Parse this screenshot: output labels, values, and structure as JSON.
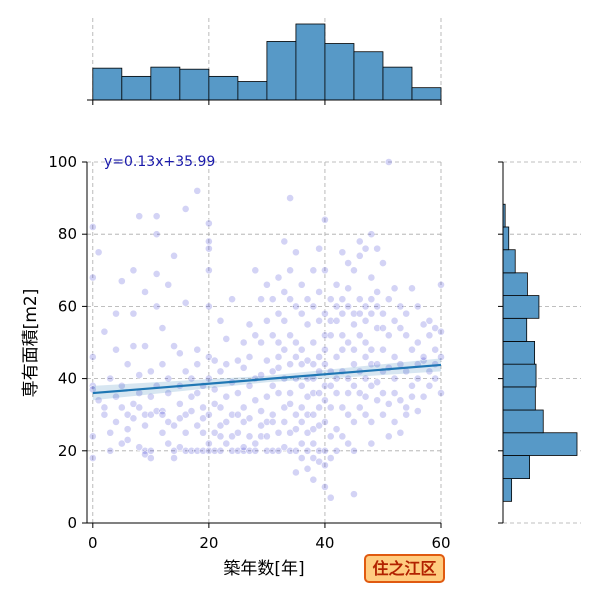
{
  "chart_data": {
    "type": "scatter",
    "xlabel": "築年数[年]",
    "ylabel": "専有面積[m2]",
    "xlim": [
      -1,
      60
    ],
    "ylim": [
      0,
      100
    ],
    "xticks": [
      0,
      20,
      40,
      60
    ],
    "yticks": [
      0,
      20,
      40,
      60,
      80,
      100
    ],
    "grid": true,
    "regression": {
      "label": "y=0.13x+35.99",
      "slope": 0.13,
      "intercept": 35.99
    },
    "badge": "住之江区",
    "colors": {
      "point": "#2222cc",
      "line": "#1f77b4",
      "hist": "#5799c7",
      "label": "#1a1aaa",
      "badge_bg": "#ffcc80",
      "badge_border": "#e05a10",
      "badge_text": "#b22200"
    },
    "marginal_x_hist": {
      "bin_edges": [
        0,
        5,
        10,
        15,
        20,
        25,
        30,
        35,
        40,
        45,
        50,
        55,
        60
      ],
      "counts": [
        31,
        23,
        32,
        30,
        23,
        18,
        57,
        74,
        55,
        47,
        32,
        12
      ]
    },
    "marginal_y_hist": {
      "bin_edges": [
        6,
        12.3,
        18.7,
        25,
        31.3,
        37.7,
        44,
        50.3,
        56.7,
        63,
        69.3,
        75.7,
        82,
        88.3
      ],
      "counts": [
        12,
        37,
        103,
        56,
        45,
        46,
        44,
        33,
        50,
        34,
        17,
        8,
        3
      ]
    },
    "points": [
      [
        0,
        38
      ],
      [
        0,
        37
      ],
      [
        0,
        24
      ],
      [
        0,
        46
      ],
      [
        0,
        68
      ],
      [
        0,
        82
      ],
      [
        0,
        18
      ],
      [
        1,
        75
      ],
      [
        1,
        34
      ],
      [
        2,
        32
      ],
      [
        2,
        53
      ],
      [
        2,
        30
      ],
      [
        3,
        20
      ],
      [
        3,
        25
      ],
      [
        3,
        40
      ],
      [
        4,
        28
      ],
      [
        4,
        35
      ],
      [
        4,
        48
      ],
      [
        4,
        58
      ],
      [
        5,
        67
      ],
      [
        5,
        22
      ],
      [
        5,
        32
      ],
      [
        5,
        38
      ],
      [
        6,
        26
      ],
      [
        6,
        30
      ],
      [
        6,
        44
      ],
      [
        6,
        23
      ],
      [
        7,
        29
      ],
      [
        7,
        49
      ],
      [
        7,
        33
      ],
      [
        7,
        70
      ],
      [
        7,
        58
      ],
      [
        8,
        41
      ],
      [
        8,
        32
      ],
      [
        8,
        21
      ],
      [
        8,
        85
      ],
      [
        8,
        36
      ],
      [
        9,
        20
      ],
      [
        9,
        19
      ],
      [
        9,
        64
      ],
      [
        9,
        49
      ],
      [
        9,
        27
      ],
      [
        9,
        30
      ],
      [
        10,
        20
      ],
      [
        10,
        42
      ],
      [
        10,
        30
      ],
      [
        10,
        35
      ],
      [
        10,
        18
      ],
      [
        11,
        80
      ],
      [
        11,
        69
      ],
      [
        11,
        31
      ],
      [
        11,
        85
      ],
      [
        11,
        60
      ],
      [
        11,
        38
      ],
      [
        12,
        25
      ],
      [
        12,
        31
      ],
      [
        12,
        54
      ],
      [
        12,
        30
      ],
      [
        12,
        44
      ],
      [
        13,
        66
      ],
      [
        13,
        28
      ],
      [
        13,
        22
      ],
      [
        13,
        36
      ],
      [
        13,
        40
      ],
      [
        14,
        27
      ],
      [
        14,
        20
      ],
      [
        14,
        18
      ],
      [
        14,
        49
      ],
      [
        14,
        74
      ],
      [
        15,
        47
      ],
      [
        15,
        33
      ],
      [
        15,
        29
      ],
      [
        15,
        21
      ],
      [
        15,
        38
      ],
      [
        16,
        87
      ],
      [
        16,
        42
      ],
      [
        16,
        30
      ],
      [
        16,
        20
      ],
      [
        16,
        61
      ],
      [
        16,
        25
      ],
      [
        17,
        35
      ],
      [
        17,
        20
      ],
      [
        17,
        40
      ],
      [
        17,
        31
      ],
      [
        18,
        48
      ],
      [
        18,
        92
      ],
      [
        18,
        27
      ],
      [
        18,
        20
      ],
      [
        18,
        44
      ],
      [
        18,
        36
      ],
      [
        19,
        20
      ],
      [
        19,
        29
      ],
      [
        19,
        38
      ],
      [
        19,
        25
      ],
      [
        19,
        32
      ],
      [
        20,
        83
      ],
      [
        20,
        76
      ],
      [
        20,
        78
      ],
      [
        20,
        70
      ],
      [
        20,
        60
      ],
      [
        20,
        46
      ],
      [
        20,
        30
      ],
      [
        20,
        20
      ],
      [
        20,
        22
      ],
      [
        20,
        40
      ],
      [
        21,
        45
      ],
      [
        21,
        25
      ],
      [
        21,
        20
      ],
      [
        21,
        33
      ],
      [
        21,
        37
      ],
      [
        22,
        56
      ],
      [
        22,
        42
      ],
      [
        22,
        32
      ],
      [
        22,
        27
      ],
      [
        22,
        20
      ],
      [
        22,
        24
      ],
      [
        23,
        22
      ],
      [
        23,
        44
      ],
      [
        23,
        35
      ],
      [
        23,
        28
      ],
      [
        23,
        51
      ],
      [
        24,
        20
      ],
      [
        24,
        30
      ],
      [
        24,
        39
      ],
      [
        24,
        24
      ],
      [
        24,
        62
      ],
      [
        25,
        20
      ],
      [
        25,
        30
      ],
      [
        25,
        45
      ],
      [
        25,
        25
      ],
      [
        25,
        36
      ],
      [
        26,
        43
      ],
      [
        26,
        20
      ],
      [
        26,
        32
      ],
      [
        26,
        21
      ],
      [
        26,
        28
      ],
      [
        26,
        50
      ],
      [
        27,
        24
      ],
      [
        27,
        20
      ],
      [
        27,
        38
      ],
      [
        27,
        29
      ],
      [
        27,
        46
      ],
      [
        27,
        55
      ],
      [
        28,
        52
      ],
      [
        28,
        34
      ],
      [
        28,
        22
      ],
      [
        28,
        20
      ],
      [
        28,
        70
      ],
      [
        28,
        40
      ],
      [
        29,
        27
      ],
      [
        29,
        41
      ],
      [
        29,
        62
      ],
      [
        29,
        24
      ],
      [
        29,
        31
      ],
      [
        29,
        50
      ],
      [
        30,
        45
      ],
      [
        30,
        35
      ],
      [
        30,
        28
      ],
      [
        30,
        20
      ],
      [
        30,
        56
      ],
      [
        30,
        66
      ],
      [
        30,
        24
      ],
      [
        31,
        42
      ],
      [
        31,
        62
      ],
      [
        31,
        52
      ],
      [
        31,
        28
      ],
      [
        31,
        20
      ],
      [
        31,
        30
      ],
      [
        31,
        38
      ],
      [
        32,
        58
      ],
      [
        32,
        43
      ],
      [
        32,
        50
      ],
      [
        32,
        25
      ],
      [
        32,
        68
      ],
      [
        32,
        36
      ],
      [
        32,
        20
      ],
      [
        32,
        46
      ],
      [
        33,
        78
      ],
      [
        33,
        64
      ],
      [
        33,
        56
      ],
      [
        33,
        40
      ],
      [
        33,
        32
      ],
      [
        33,
        21
      ],
      [
        33,
        48
      ],
      [
        33,
        28
      ],
      [
        34,
        90
      ],
      [
        34,
        62
      ],
      [
        34,
        52
      ],
      [
        34,
        44
      ],
      [
        34,
        36
      ],
      [
        34,
        25
      ],
      [
        34,
        20
      ],
      [
        34,
        33
      ],
      [
        34,
        70
      ],
      [
        35,
        50
      ],
      [
        35,
        60
      ],
      [
        35,
        40
      ],
      [
        35,
        30
      ],
      [
        35,
        20
      ],
      [
        35,
        26
      ],
      [
        35,
        46
      ],
      [
        35,
        14
      ],
      [
        35,
        75
      ],
      [
        36,
        58
      ],
      [
        36,
        48
      ],
      [
        36,
        38
      ],
      [
        36,
        28
      ],
      [
        36,
        22
      ],
      [
        36,
        18
      ],
      [
        36,
        66
      ],
      [
        36,
        32
      ],
      [
        36,
        44
      ],
      [
        37,
        55
      ],
      [
        37,
        45
      ],
      [
        37,
        35
      ],
      [
        37,
        25
      ],
      [
        37,
        20
      ],
      [
        37,
        15
      ],
      [
        37,
        62
      ],
      [
        37,
        40
      ],
      [
        37,
        30
      ],
      [
        38,
        60
      ],
      [
        38,
        50
      ],
      [
        38,
        40
      ],
      [
        38,
        30
      ],
      [
        38,
        22
      ],
      [
        38,
        18
      ],
      [
        38,
        12
      ],
      [
        38,
        70
      ],
      [
        38,
        26
      ],
      [
        38,
        44
      ],
      [
        38,
        36
      ],
      [
        39,
        56
      ],
      [
        39,
        46
      ],
      [
        39,
        36
      ],
      [
        39,
        27
      ],
      [
        39,
        20
      ],
      [
        39,
        17
      ],
      [
        39,
        64
      ],
      [
        39,
        32
      ],
      [
        39,
        42
      ],
      [
        39,
        76
      ],
      [
        40,
        84
      ],
      [
        40,
        70
      ],
      [
        40,
        58
      ],
      [
        40,
        48
      ],
      [
        40,
        38
      ],
      [
        40,
        28
      ],
      [
        40,
        20
      ],
      [
        40,
        16
      ],
      [
        40,
        10
      ],
      [
        40,
        52
      ],
      [
        40,
        34
      ],
      [
        40,
        44
      ],
      [
        41,
        7
      ],
      [
        41,
        62
      ],
      [
        41,
        52
      ],
      [
        41,
        42
      ],
      [
        41,
        32
      ],
      [
        41,
        24
      ],
      [
        41,
        18
      ],
      [
        41,
        56
      ],
      [
        41,
        38
      ],
      [
        42,
        66
      ],
      [
        42,
        56
      ],
      [
        42,
        46
      ],
      [
        42,
        36
      ],
      [
        42,
        26
      ],
      [
        42,
        20
      ],
      [
        42,
        60
      ],
      [
        42,
        40
      ],
      [
        43,
        75
      ],
      [
        43,
        62
      ],
      [
        43,
        52
      ],
      [
        43,
        42
      ],
      [
        43,
        32
      ],
      [
        43,
        24
      ],
      [
        43,
        48
      ],
      [
        43,
        58
      ],
      [
        44,
        72
      ],
      [
        44,
        60
      ],
      [
        44,
        50
      ],
      [
        44,
        40
      ],
      [
        44,
        30
      ],
      [
        44,
        22
      ],
      [
        44,
        65
      ],
      [
        44,
        36
      ],
      [
        45,
        58
      ],
      [
        45,
        48
      ],
      [
        45,
        38
      ],
      [
        45,
        28
      ],
      [
        45,
        55
      ],
      [
        45,
        20
      ],
      [
        45,
        8
      ],
      [
        45,
        70
      ],
      [
        45,
        44
      ],
      [
        46,
        78
      ],
      [
        46,
        62
      ],
      [
        46,
        52
      ],
      [
        46,
        42
      ],
      [
        46,
        32
      ],
      [
        46,
        58
      ],
      [
        46,
        74
      ],
      [
        46,
        36
      ],
      [
        47,
        60
      ],
      [
        47,
        50
      ],
      [
        47,
        40
      ],
      [
        47,
        30
      ],
      [
        47,
        76
      ],
      [
        47,
        56
      ],
      [
        47,
        46
      ],
      [
        47,
        35
      ],
      [
        48,
        80
      ],
      [
        48,
        68
      ],
      [
        48,
        58
      ],
      [
        48,
        48
      ],
      [
        48,
        38
      ],
      [
        48,
        28
      ],
      [
        48,
        62
      ],
      [
        48,
        44
      ],
      [
        48,
        22
      ],
      [
        49,
        64
      ],
      [
        49,
        54
      ],
      [
        49,
        44
      ],
      [
        49,
        34
      ],
      [
        49,
        60
      ],
      [
        49,
        76
      ],
      [
        49,
        39
      ],
      [
        50,
        72
      ],
      [
        50,
        58
      ],
      [
        50,
        48
      ],
      [
        50,
        36
      ],
      [
        50,
        30
      ],
      [
        50,
        54
      ],
      [
        50,
        42
      ],
      [
        51,
        52
      ],
      [
        51,
        43
      ],
      [
        51,
        33
      ],
      [
        51,
        62
      ],
      [
        51,
        100
      ],
      [
        51,
        24
      ],
      [
        52,
        56
      ],
      [
        52,
        46
      ],
      [
        52,
        36
      ],
      [
        52,
        28
      ],
      [
        52,
        65
      ],
      [
        52,
        40
      ],
      [
        53,
        54
      ],
      [
        53,
        44
      ],
      [
        53,
        34
      ],
      [
        53,
        25
      ],
      [
        53,
        60
      ],
      [
        54,
        52
      ],
      [
        54,
        42
      ],
      [
        54,
        32
      ],
      [
        54,
        58
      ],
      [
        54,
        30
      ],
      [
        55,
        48
      ],
      [
        55,
        38
      ],
      [
        55,
        65
      ],
      [
        55,
        35
      ],
      [
        56,
        60
      ],
      [
        56,
        50
      ],
      [
        56,
        40
      ],
      [
        56,
        31
      ],
      [
        56,
        44
      ],
      [
        57,
        55
      ],
      [
        57,
        45
      ],
      [
        57,
        35
      ],
      [
        57,
        46
      ],
      [
        58,
        52
      ],
      [
        58,
        42
      ],
      [
        58,
        56
      ],
      [
        58,
        38
      ],
      [
        59,
        48
      ],
      [
        59,
        40
      ],
      [
        59,
        54
      ],
      [
        59,
        44
      ],
      [
        60,
        66
      ],
      [
        60,
        46
      ],
      [
        60,
        53
      ],
      [
        60,
        36
      ]
    ]
  }
}
